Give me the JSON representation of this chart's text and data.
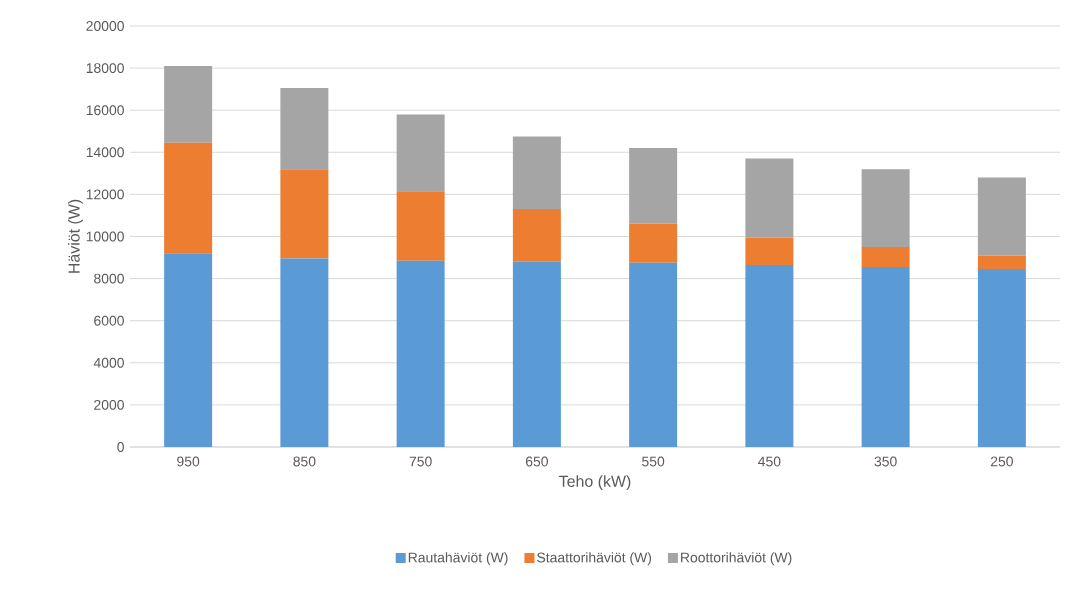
{
  "chart_data": {
    "type": "bar",
    "stacked": true,
    "xlabel": "Teho (kW)",
    "ylabel": "Häviöt (W)",
    "categories": [
      "950",
      "850",
      "750",
      "650",
      "550",
      "450",
      "350",
      "250"
    ],
    "series": [
      {
        "name": "Rautahäviöt (W)",
        "color": "#5b9bd5",
        "values": [
          9200,
          8950,
          8850,
          8800,
          8750,
          8650,
          8550,
          8450
        ]
      },
      {
        "name": "Staattorihäviöt (W)",
        "color": "#ed7d31",
        "values": [
          5250,
          4250,
          3300,
          2500,
          1850,
          1300,
          950,
          650
        ]
      },
      {
        "name": "Roottorihäviöt (W)",
        "color": "#a5a5a5",
        "values": [
          3650,
          3850,
          3650,
          3450,
          3600,
          3750,
          3700,
          3700
        ]
      }
    ],
    "ylim": [
      0,
      20000
    ],
    "yticks": [
      0,
      2000,
      4000,
      6000,
      8000,
      10000,
      12000,
      14000,
      16000,
      18000,
      20000
    ],
    "grid": "y",
    "legend": "bottom"
  }
}
